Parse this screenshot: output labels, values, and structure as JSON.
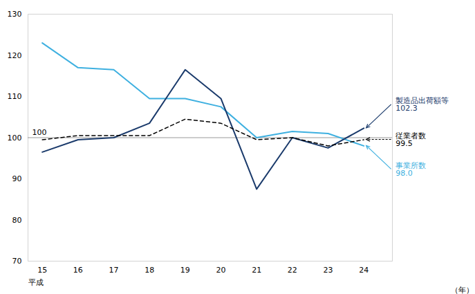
{
  "chart_data": {
    "type": "line",
    "x": [
      15,
      16,
      17,
      18,
      19,
      20,
      21,
      22,
      23,
      24
    ],
    "xlim": [
      14.6,
      24.8
    ],
    "xticks": [
      15,
      16,
      17,
      18,
      19,
      20,
      21,
      22,
      23,
      24
    ],
    "ylim": [
      70,
      130
    ],
    "yticks": [
      70,
      80,
      90,
      100,
      110,
      120,
      130
    ],
    "xlabel": "（年）",
    "annotations": [
      "平成"
    ],
    "baseline": {
      "value": 100,
      "label": "100"
    },
    "grid": false,
    "series": [
      {
        "name": "事業所数",
        "color": "#3eb0e0",
        "line_style": "solid",
        "values": [
          123.0,
          117.0,
          116.5,
          109.5,
          109.5,
          107.5,
          100.0,
          101.5,
          101.0,
          98.0
        ],
        "value_labels": [
          null,
          null,
          null,
          null,
          null,
          null,
          null,
          null,
          null,
          "98.0"
        ]
      },
      {
        "name": "製造品出荷額等",
        "color": "#1a3a6b",
        "line_style": "solid",
        "values": [
          96.5,
          99.5,
          100.0,
          103.5,
          116.5,
          109.5,
          87.5,
          100.0,
          97.5,
          102.3
        ],
        "value_labels": [
          null,
          null,
          null,
          null,
          null,
          null,
          null,
          null,
          null,
          "102.3"
        ]
      },
      {
        "name": "従業者数",
        "color": "#000000",
        "line_style": "dashed",
        "values": [
          99.5,
          100.5,
          100.5,
          100.5,
          104.5,
          103.5,
          99.5,
          100.0,
          98.0,
          99.5
        ],
        "value_labels": [
          null,
          null,
          null,
          null,
          null,
          null,
          null,
          null,
          null,
          "99.5"
        ]
      }
    ]
  }
}
